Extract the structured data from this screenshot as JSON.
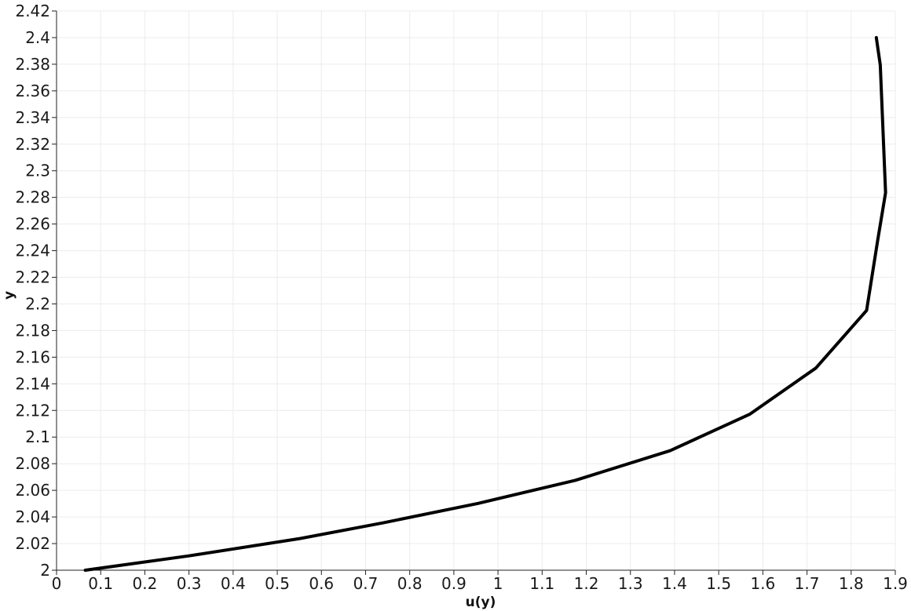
{
  "chart_data": {
    "type": "line",
    "title": "",
    "xlabel": "u(y)",
    "ylabel": "y",
    "xlim": [
      0,
      1.9
    ],
    "ylim": [
      2,
      2.42
    ],
    "grid": true,
    "x_ticks": [
      "0",
      "0.1",
      "0.2",
      "0.3",
      "0.4",
      "0.5",
      "0.6",
      "0.7",
      "0.8",
      "0.9",
      "1",
      "1.1",
      "1.2",
      "1.3",
      "1.4",
      "1.5",
      "1.6",
      "1.7",
      "1.8",
      "1.9"
    ],
    "y_ticks": [
      "2",
      "2.02",
      "2.04",
      "2.06",
      "2.08",
      "2.1",
      "2.12",
      "2.14",
      "2.16",
      "2.18",
      "2.2",
      "2.22",
      "2.24",
      "2.26",
      "2.28",
      "2.3",
      "2.32",
      "2.34",
      "2.36",
      "2.38",
      "2.4",
      "2.42"
    ],
    "series": [
      {
        "color": "#000000",
        "points": [
          {
            "x": 0.065,
            "y": 2.0
          },
          {
            "x": 0.3,
            "y": 2.0108
          },
          {
            "x": 0.55,
            "y": 2.0237
          },
          {
            "x": 0.74,
            "y": 2.0356
          },
          {
            "x": 0.955,
            "y": 2.0502
          },
          {
            "x": 1.175,
            "y": 2.0675
          },
          {
            "x": 1.39,
            "y": 2.0898
          },
          {
            "x": 1.57,
            "y": 2.1171
          },
          {
            "x": 1.72,
            "y": 2.1518
          },
          {
            "x": 1.835,
            "y": 2.1951
          },
          {
            "x": 1.86,
            "y": 2.2475
          },
          {
            "x": 1.878,
            "y": 2.2835
          },
          {
            "x": 1.866,
            "y": 2.3794
          },
          {
            "x": 1.857,
            "y": 2.4
          }
        ]
      }
    ]
  }
}
